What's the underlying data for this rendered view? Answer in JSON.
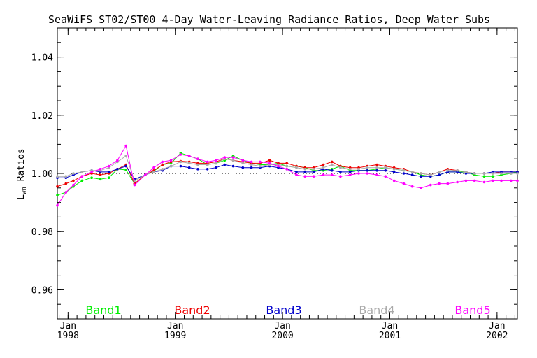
{
  "chart_data": {
    "type": "line",
    "title": "SeaWiFS ST02/ST00 4-Day Water-Leaving Radiance Ratios, Deep Water Subs",
    "ylabel_main": "L",
    "ylabel_sub": "wn",
    "ylabel_tail": " Ratios",
    "ylim": [
      0.95,
      1.05
    ],
    "yticks": [
      0.96,
      0.98,
      1.0,
      1.02,
      1.04
    ],
    "ytick_labels": [
      "0.96",
      "0.98",
      "1.00",
      "1.02",
      "1.04"
    ],
    "xlim": [
      1997.9,
      2002.19
    ],
    "xticks": [
      {
        "x": 1998.0,
        "month": "Jan",
        "year": "1998"
      },
      {
        "x": 1999.0,
        "month": "Jan",
        "year": "1999"
      },
      {
        "x": 2000.0,
        "month": "Jan",
        "year": "2000"
      },
      {
        "x": 2001.0,
        "month": "Jan",
        "year": "2001"
      },
      {
        "x": 2002.0,
        "month": "Jan",
        "year": "2002"
      }
    ],
    "reference_line": 1.0,
    "x": [
      1997.9,
      1997.98,
      1998.05,
      1998.13,
      1998.22,
      1998.3,
      1998.38,
      1998.46,
      1998.54,
      1998.62,
      1998.72,
      1998.8,
      1998.88,
      1998.96,
      1999.05,
      1999.13,
      1999.21,
      1999.3,
      1999.38,
      1999.46,
      1999.54,
      1999.63,
      1999.71,
      1999.79,
      1999.88,
      1999.96,
      2000.04,
      2000.13,
      2000.21,
      2000.29,
      2000.38,
      2000.46,
      2000.54,
      2000.63,
      2000.71,
      2000.79,
      2000.88,
      2000.96,
      2001.04,
      2001.13,
      2001.21,
      2001.29,
      2001.38,
      2001.46,
      2001.54,
      2001.63,
      2001.71,
      2001.79,
      2001.88,
      2001.96,
      2002.04,
      2002.13,
      2002.19
    ],
    "series": [
      {
        "name": "Band1",
        "color": "#00ee00",
        "values": [
          0.9925,
          0.9935,
          0.9955,
          0.9975,
          0.9985,
          0.998,
          0.9985,
          1.0015,
          1.0012,
          0.9965,
          0.9995,
          1.0008,
          1.003,
          1.0035,
          1.007,
          1.006,
          1.005,
          1.003,
          1.0035,
          1.0045,
          1.006,
          1.0045,
          1.0035,
          1.003,
          1.003,
          1.0035,
          1.0025,
          1.0025,
          1.002,
          1.001,
          1.001,
          1.0015,
          1.0025,
          1.001,
          1.001,
          1.001,
          1.0015,
          1.002,
          1.0015,
          1.001,
          1.0005,
          0.9995,
          0.999,
          0.9995,
          1.0005,
          1.0005,
          1.0005,
          0.9995,
          0.999,
          0.999,
          0.9995,
          1.0,
          1.0005
        ]
      },
      {
        "name": "Band2",
        "color": "#ee0000",
        "values": [
          0.9955,
          0.9965,
          0.9975,
          0.999,
          1.0,
          0.9995,
          1.0,
          1.0015,
          1.003,
          0.9965,
          0.9995,
          1.001,
          1.003,
          1.004,
          1.0042,
          1.004,
          1.0035,
          1.0035,
          1.004,
          1.005,
          1.0045,
          1.004,
          1.0035,
          1.0035,
          1.0045,
          1.0035,
          1.0035,
          1.0025,
          1.002,
          1.002,
          1.003,
          1.004,
          1.0025,
          1.002,
          1.002,
          1.0025,
          1.003,
          1.0025,
          1.002,
          1.0015,
          1.0005,
          1.0,
          0.9995,
          1.0005,
          1.0015,
          1.001,
          1.0005,
          1.0,
          1.0,
          1.0,
          1.0005,
          1.0005,
          1.0005
        ]
      },
      {
        "name": "Band3",
        "color": "#0000cc",
        "values": [
          0.9985,
          0.9985,
          0.9995,
          1.0005,
          1.001,
          1.0005,
          1.0005,
          1.0015,
          1.0025,
          0.998,
          0.9995,
          1.0005,
          1.001,
          1.0025,
          1.0025,
          1.002,
          1.0015,
          1.0015,
          1.002,
          1.003,
          1.0025,
          1.002,
          1.002,
          1.002,
          1.0025,
          1.002,
          1.0015,
          1.0005,
          1.0005,
          1.0005,
          1.0015,
          1.001,
          1.0005,
          1.0005,
          1.001,
          1.001,
          1.001,
          1.001,
          1.0005,
          1.0,
          0.9995,
          0.999,
          0.999,
          0.9995,
          1.0005,
          1.0005,
          1.0,
          1.0,
          1.0,
          1.0005,
          1.0005,
          1.0005,
          1.0005
        ]
      },
      {
        "name": "Band4",
        "color": "#aaaaaa",
        "values": [
          0.999,
          0.999,
          1.0,
          1.0005,
          1.001,
          1.001,
          1.002,
          1.004,
          1.006,
          0.9975,
          0.9995,
          1.0005,
          1.0015,
          1.0025,
          1.004,
          1.0035,
          1.003,
          1.003,
          1.0035,
          1.005,
          1.0045,
          1.0035,
          1.003,
          1.0025,
          1.003,
          1.003,
          1.0025,
          1.002,
          1.0015,
          1.0015,
          1.002,
          1.003,
          1.002,
          1.0015,
          1.0015,
          1.002,
          1.002,
          1.002,
          1.0015,
          1.001,
          1.0005,
          1.0,
          0.9995,
          1.0005,
          1.001,
          1.001,
          1.0005,
          1.0,
          1.0,
          1.0,
          1.0,
          1.0,
          1.0
        ]
      },
      {
        "name": "Band5",
        "color": "#ff00ff",
        "values": [
          0.989,
          0.9935,
          0.996,
          0.999,
          1.0005,
          1.0015,
          1.0025,
          1.0045,
          1.0095,
          0.996,
          0.9995,
          1.002,
          1.004,
          1.0045,
          1.0065,
          1.006,
          1.005,
          1.004,
          1.0045,
          1.0055,
          1.0055,
          1.0045,
          1.004,
          1.004,
          1.0035,
          1.0025,
          1.0015,
          0.9995,
          0.999,
          0.999,
          0.9995,
          0.9995,
          0.999,
          0.9995,
          1.0,
          1.0,
          0.9995,
          0.999,
          0.9975,
          0.9965,
          0.9955,
          0.995,
          0.996,
          0.9965,
          0.9965,
          0.997,
          0.9975,
          0.9975,
          0.997,
          0.9975,
          0.9975,
          0.9975,
          0.9975
        ]
      }
    ]
  }
}
